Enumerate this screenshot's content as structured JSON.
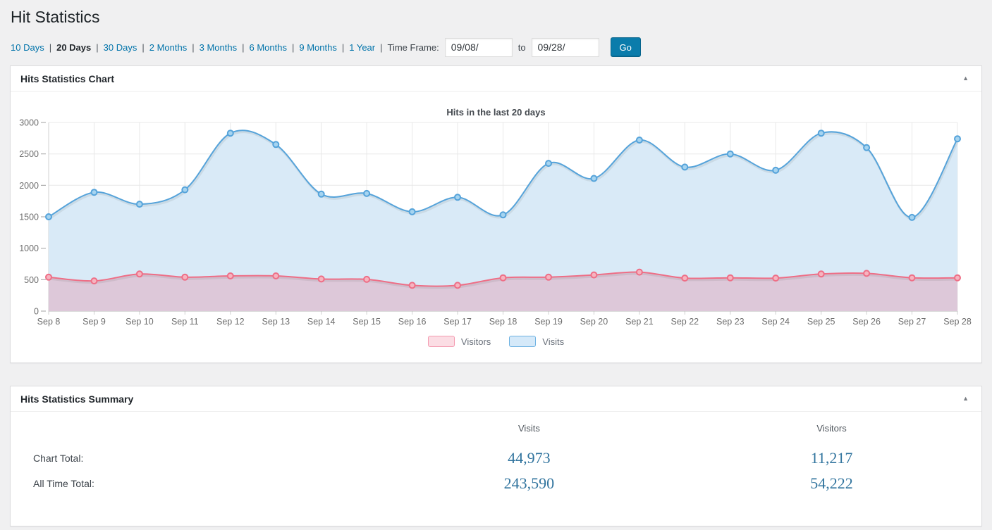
{
  "page": {
    "title": "Hit Statistics"
  },
  "nav": {
    "separator": "|",
    "ranges": [
      {
        "label": "10 Days",
        "active": false
      },
      {
        "label": "20 Days",
        "active": true
      },
      {
        "label": "30 Days",
        "active": false
      },
      {
        "label": "2 Months",
        "active": false
      },
      {
        "label": "3 Months",
        "active": false
      },
      {
        "label": "6 Months",
        "active": false
      },
      {
        "label": "9 Months",
        "active": false
      },
      {
        "label": "1 Year",
        "active": false
      }
    ],
    "timeframe": {
      "label": "Time Frame:",
      "from_value": "09/08/",
      "to_label": "to",
      "to_value": "09/28/",
      "go_label": "Go"
    },
    "colors": {
      "link": "#0073aa",
      "go_button": "#0b7cab"
    }
  },
  "chart_panel": {
    "title": "Hits Statistics Chart",
    "collapse_icon": "▲"
  },
  "chart_data": {
    "type": "area",
    "title": "Hits in the last 20 days",
    "xlabel": "",
    "ylabel": "",
    "ylim": [
      0,
      3000
    ],
    "yticks": [
      0,
      500,
      1000,
      1500,
      2000,
      2500,
      3000
    ],
    "grid": true,
    "legend_position": "bottom",
    "categories": [
      "Sep 8",
      "Sep 9",
      "Sep 10",
      "Sep 11",
      "Sep 12",
      "Sep 13",
      "Sep 14",
      "Sep 15",
      "Sep 16",
      "Sep 17",
      "Sep 18",
      "Sep 19",
      "Sep 20",
      "Sep 21",
      "Sep 22",
      "Sep 23",
      "Sep 24",
      "Sep 25",
      "Sep 26",
      "Sep 27",
      "Sep 28"
    ],
    "series": [
      {
        "name": "Visitors",
        "color": "#ee6e86",
        "fill": "rgba(231,124,148,0.30)",
        "marker_fill": "#f6b4c0",
        "swatch_fill": "#fbdde4",
        "swatch_border": "#f49ab0",
        "values": [
          540,
          480,
          590,
          540,
          560,
          560,
          510,
          505,
          410,
          410,
          530,
          540,
          575,
          620,
          525,
          530,
          525,
          590,
          600,
          530,
          530
        ]
      },
      {
        "name": "Visits",
        "color": "#55a3da",
        "fill": "#d9eaf7",
        "marker_fill": "#a6d4f0",
        "swatch_fill": "#d5e9f9",
        "swatch_border": "#6db2e2",
        "values": [
          1500,
          1890,
          1700,
          1930,
          2830,
          2650,
          1860,
          1870,
          1580,
          1810,
          1530,
          2350,
          2110,
          2720,
          2290,
          2500,
          2240,
          2830,
          2600,
          1490,
          2740
        ]
      }
    ]
  },
  "summary_panel": {
    "title": "Hits Statistics Summary",
    "collapse_icon": "▲",
    "columns": {
      "visits": "Visits",
      "visitors": "Visitors"
    },
    "rows": [
      {
        "label": "Chart Total:",
        "visits": "44,973",
        "visitors": "11,217"
      },
      {
        "label": "All Time Total:",
        "visits": "243,590",
        "visitors": "54,222"
      }
    ]
  }
}
